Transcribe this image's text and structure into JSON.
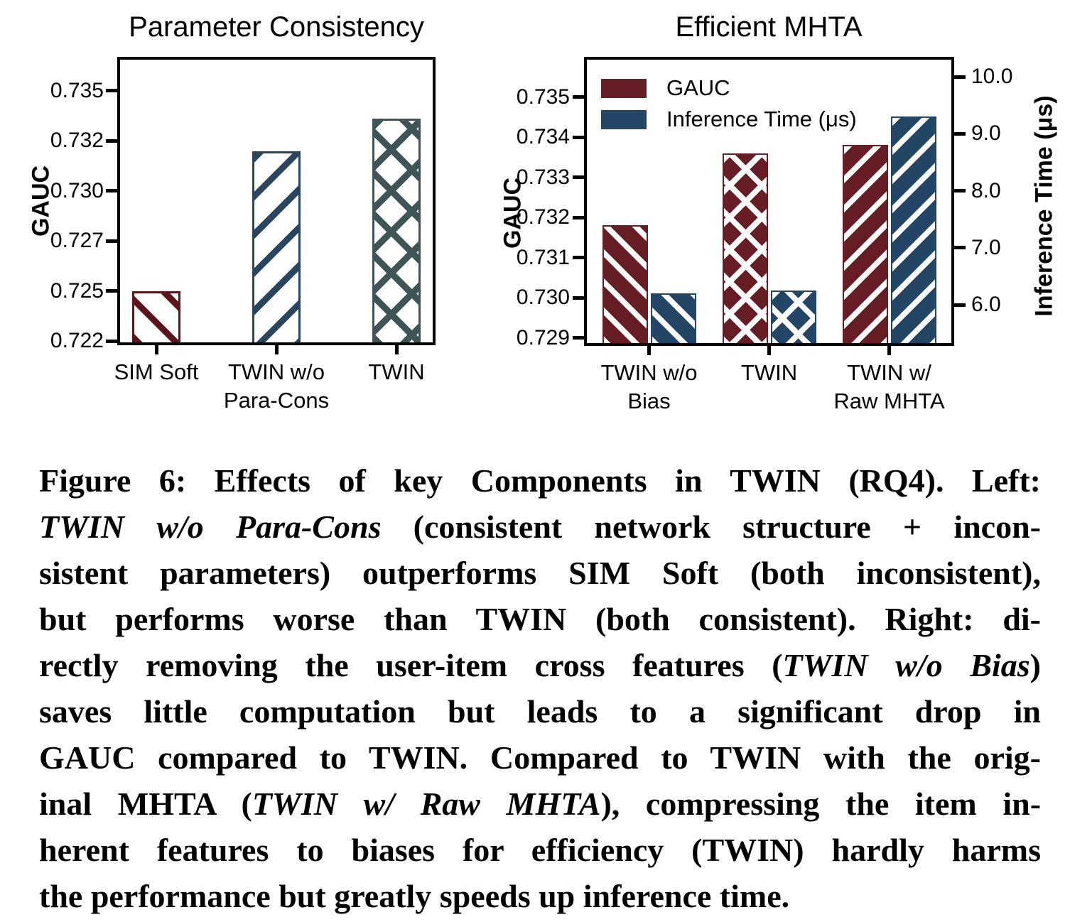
{
  "accent_colors": {
    "maroon": "#661E24",
    "maroon_hatch_left": "#5B161B",
    "navy": "#234566",
    "navy_hatch_left": "#28465F",
    "teal": "#3F5456",
    "axis": "#000000"
  },
  "chart_data": [
    {
      "type": "bar",
      "title": "Parameter Consistency",
      "ylabel": "GAUC",
      "categories": [
        [
          "SIM Soft"
        ],
        [
          "TWIN w/o",
          "Para-Cons"
        ],
        [
          "TWIN"
        ]
      ],
      "values": [
        0.725,
        0.732,
        0.7336
      ],
      "hatches": [
        "diag-down",
        "diag-up",
        "cross"
      ],
      "colors": [
        "#5B161B",
        "#28465F",
        "#3F5456"
      ],
      "bar_fill": "#ffffff",
      "ylim": [
        0.7223,
        0.7367
      ],
      "yticks": [
        0.7225,
        0.725,
        0.7275,
        0.73,
        0.7325,
        0.735
      ],
      "ytick_labels": [
        "0.722",
        "0.725",
        "0.727",
        "0.730",
        "0.732",
        "0.735"
      ],
      "grid": false,
      "legend_position": "none"
    },
    {
      "type": "grouped-bar",
      "title": "Efficient MHTA",
      "ylabel_left": "GAUC",
      "ylabel_right": "Inference Time (μs)",
      "categories": [
        [
          "TWIN w/o",
          "Bias"
        ],
        [
          "TWIN"
        ],
        [
          "TWIN w/",
          "Raw MHTA"
        ]
      ],
      "series": [
        {
          "name": "GAUC",
          "axis": "left",
          "color": "#661E24",
          "values": [
            0.7318,
            0.7336,
            0.7338
          ]
        },
        {
          "name": "Inference Time (μs)",
          "axis": "right",
          "color": "#234566",
          "values": [
            6.2,
            6.25,
            9.3
          ]
        }
      ],
      "group_hatches": [
        "diag-down",
        "cross",
        "diag-up"
      ],
      "ylim_left": [
        0.7288,
        0.736
      ],
      "yticks_left": [
        0.729,
        0.73,
        0.731,
        0.732,
        0.733,
        0.734,
        0.735
      ],
      "ytick_labels_left": [
        "0.729",
        "0.730",
        "0.731",
        "0.732",
        "0.733",
        "0.734",
        "0.735"
      ],
      "ylim_right": [
        5.28,
        10.35
      ],
      "yticks_right": [
        6,
        7,
        8,
        9,
        10
      ],
      "ytick_labels_right": [
        "6.0",
        "7.0",
        "8.0",
        "9.0",
        "10.0"
      ],
      "grid": false,
      "legend_position": "upper-left",
      "legend": [
        "GAUC",
        "Inference Time (μs)"
      ]
    }
  ],
  "caption": {
    "lines": [
      [
        {
          "t": "Figure 6: Effects of key Components in TWIN (RQ4). Left:"
        }
      ],
      [
        {
          "t": "TWIN w/o Para-Cons",
          "i": true
        },
        {
          "t": " (consistent network structure + incon-"
        }
      ],
      [
        {
          "t": "sistent parameters) outperforms SIM Soft (both inconsistent),"
        }
      ],
      [
        {
          "t": "but performs worse than TWIN (both consistent). Right: di-"
        }
      ],
      [
        {
          "t": "rectly removing the user-item cross features ("
        },
        {
          "t": "TWIN w/o Bias",
          "i": true
        },
        {
          "t": ")"
        }
      ],
      [
        {
          "t": "saves little computation but leads to a significant drop in"
        }
      ],
      [
        {
          "t": "GAUC compared to TWIN. Compared to TWIN with the orig-"
        }
      ],
      [
        {
          "t": "inal MHTA ("
        },
        {
          "t": "TWIN w/ Raw MHTA",
          "i": true
        },
        {
          "t": "), compressing the item in-"
        }
      ],
      [
        {
          "t": "herent features to biases for efficiency (TWIN) hardly harms"
        }
      ],
      [
        {
          "t": "the performance but greatly speeds up inference time."
        }
      ]
    ]
  }
}
